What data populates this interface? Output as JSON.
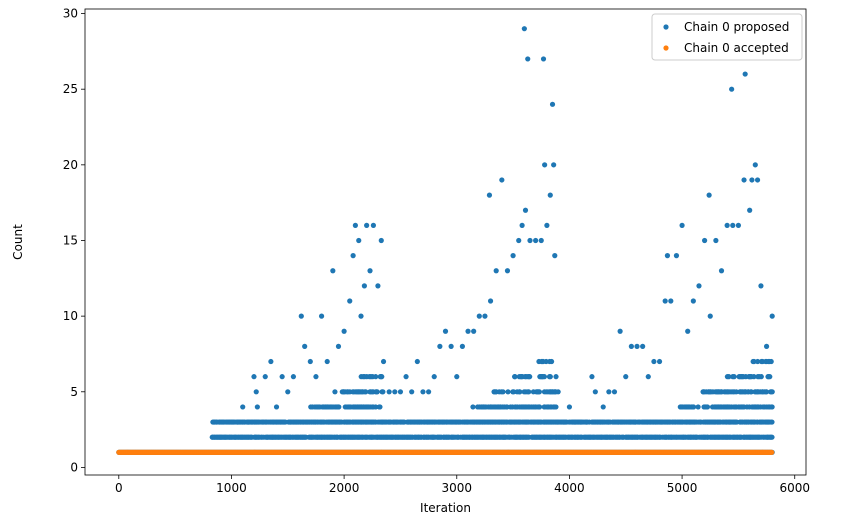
{
  "chart_data": {
    "type": "scatter",
    "title": "",
    "xlabel": "Iteration",
    "ylabel": "Count",
    "xlim": [
      -300,
      6100
    ],
    "ylim": [
      -0.5,
      30.3
    ],
    "xticks": [
      0,
      1000,
      2000,
      3000,
      4000,
      5000,
      6000
    ],
    "yticks": [
      0,
      5,
      10,
      15,
      20,
      25,
      30
    ],
    "legend": {
      "placement": "top-right"
    },
    "grid": false,
    "series": [
      {
        "name": "Chain 0 proposed",
        "color": "#1f77b4",
        "marker": "circle",
        "note_x_range": [
          0,
          5800
        ],
        "baseline_values": [
          1
        ],
        "points": [
          [
            830,
            2
          ],
          [
            900,
            2
          ],
          [
            1000,
            3
          ],
          [
            1050,
            3
          ],
          [
            1100,
            4
          ],
          [
            1150,
            3
          ],
          [
            1200,
            6
          ],
          [
            1220,
            5
          ],
          [
            1230,
            4
          ],
          [
            1300,
            6
          ],
          [
            1350,
            7
          ],
          [
            1400,
            4
          ],
          [
            1450,
            6
          ],
          [
            1500,
            5
          ],
          [
            1550,
            6
          ],
          [
            1620,
            10
          ],
          [
            1650,
            8
          ],
          [
            1700,
            7
          ],
          [
            1750,
            6
          ],
          [
            1800,
            10
          ],
          [
            1850,
            7
          ],
          [
            1900,
            13
          ],
          [
            1950,
            8
          ],
          [
            2000,
            9
          ],
          [
            2050,
            11
          ],
          [
            2080,
            14
          ],
          [
            2100,
            16
          ],
          [
            2130,
            15
          ],
          [
            2150,
            10
          ],
          [
            2180,
            12
          ],
          [
            2200,
            16
          ],
          [
            2230,
            13
          ],
          [
            2260,
            16
          ],
          [
            2300,
            12
          ],
          [
            2330,
            15
          ],
          [
            2350,
            7
          ],
          [
            2400,
            5
          ],
          [
            2450,
            5
          ],
          [
            2500,
            5
          ],
          [
            2550,
            6
          ],
          [
            2600,
            5
          ],
          [
            2650,
            7
          ],
          [
            2700,
            5
          ],
          [
            2750,
            5
          ],
          [
            2800,
            6
          ],
          [
            2850,
            8
          ],
          [
            2900,
            9
          ],
          [
            2950,
            8
          ],
          [
            3000,
            6
          ],
          [
            3050,
            8
          ],
          [
            3100,
            9
          ],
          [
            3150,
            9
          ],
          [
            3200,
            10
          ],
          [
            3250,
            10
          ],
          [
            3290,
            18
          ],
          [
            3300,
            11
          ],
          [
            3350,
            13
          ],
          [
            3400,
            19
          ],
          [
            3450,
            13
          ],
          [
            3500,
            14
          ],
          [
            3550,
            15
          ],
          [
            3580,
            16
          ],
          [
            3600,
            29
          ],
          [
            3610,
            17
          ],
          [
            3630,
            27
          ],
          [
            3650,
            15
          ],
          [
            3700,
            15
          ],
          [
            3750,
            15
          ],
          [
            3770,
            27
          ],
          [
            3780,
            20
          ],
          [
            3800,
            16
          ],
          [
            3830,
            18
          ],
          [
            3850,
            24
          ],
          [
            3860,
            20
          ],
          [
            3870,
            14
          ],
          [
            3900,
            5
          ],
          [
            3950,
            3
          ],
          [
            4000,
            4
          ],
          [
            4050,
            3
          ],
          [
            4100,
            3
          ],
          [
            4150,
            3
          ],
          [
            4200,
            6
          ],
          [
            4230,
            5
          ],
          [
            4300,
            4
          ],
          [
            4350,
            5
          ],
          [
            4400,
            5
          ],
          [
            4450,
            9
          ],
          [
            4500,
            6
          ],
          [
            4550,
            8
          ],
          [
            4600,
            8
          ],
          [
            4650,
            8
          ],
          [
            4700,
            6
          ],
          [
            4750,
            7
          ],
          [
            4800,
            7
          ],
          [
            4850,
            11
          ],
          [
            4870,
            14
          ],
          [
            4900,
            11
          ],
          [
            4950,
            14
          ],
          [
            5000,
            16
          ],
          [
            5050,
            9
          ],
          [
            5100,
            11
          ],
          [
            5150,
            12
          ],
          [
            5200,
            15
          ],
          [
            5240,
            18
          ],
          [
            5250,
            10
          ],
          [
            5300,
            15
          ],
          [
            5350,
            13
          ],
          [
            5400,
            16
          ],
          [
            5440,
            25
          ],
          [
            5450,
            16
          ],
          [
            5500,
            16
          ],
          [
            5550,
            19
          ],
          [
            5560,
            26
          ],
          [
            5600,
            17
          ],
          [
            5620,
            19
          ],
          [
            5650,
            20
          ],
          [
            5670,
            19
          ],
          [
            5700,
            12
          ],
          [
            5750,
            8
          ],
          [
            5800,
            10
          ]
        ]
      },
      {
        "name": "Chain 0 accepted",
        "color": "#ff7f0e",
        "marker": "circle",
        "constant_value": 1,
        "x_range": [
          0,
          5800
        ]
      }
    ]
  }
}
